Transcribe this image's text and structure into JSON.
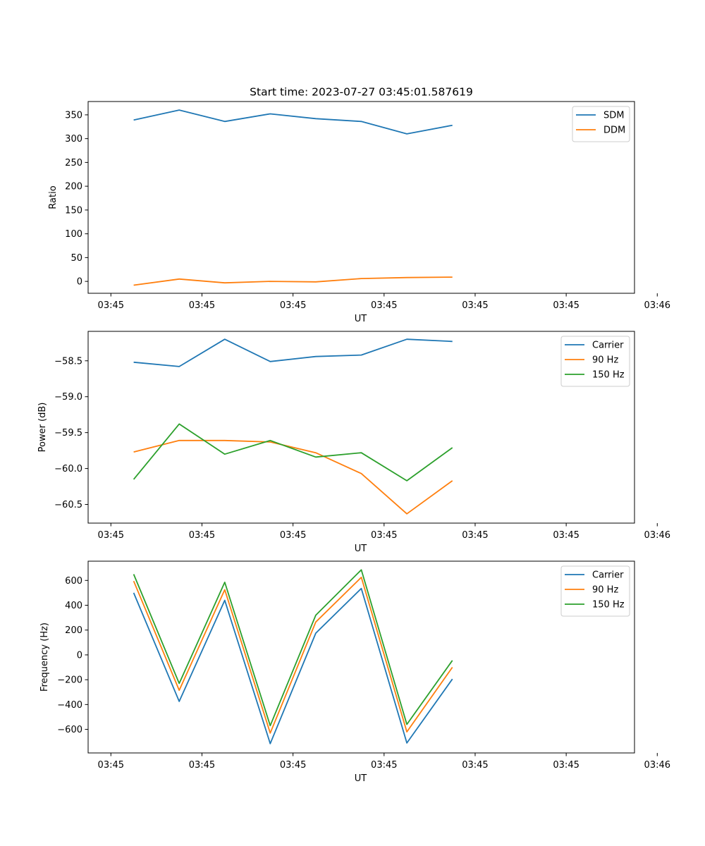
{
  "figure_title": "Start time: 2023-07-27 03:45:01.587619",
  "chart_data": [
    {
      "type": "line",
      "xlabel": "UT",
      "ylabel": "Ratio",
      "x_ticks": [
        "03:45",
        "03:45",
        "03:45",
        "03:45",
        "03:45",
        "03:45",
        "03:46"
      ],
      "xlim": [
        -0.5,
        11.5
      ],
      "ylim": [
        -25,
        378
      ],
      "y_ticks": [
        0,
        50,
        100,
        150,
        200,
        250,
        300,
        350
      ],
      "y_tick_labels": [
        "0",
        "50",
        "100",
        "150",
        "200",
        "250",
        "300",
        "350"
      ],
      "legend_position": "top-right",
      "series": [
        {
          "name": "SDM",
          "color": "#1f77b4",
          "x": [
            0.5,
            1.5,
            2.5,
            3.5,
            4.5,
            5.5,
            6.5,
            7.5
          ],
          "values": [
            339,
            360,
            336,
            352,
            342,
            336,
            310,
            328
          ]
        },
        {
          "name": "DDM",
          "color": "#ff7f0e",
          "x": [
            0.5,
            1.5,
            2.5,
            3.5,
            4.5,
            5.5,
            6.5,
            7.5
          ],
          "values": [
            -8,
            5,
            -3,
            0,
            -1,
            6,
            8,
            9
          ]
        }
      ]
    },
    {
      "type": "line",
      "xlabel": "UT",
      "ylabel": "Power (dB)",
      "x_ticks": [
        "03:45",
        "03:45",
        "03:45",
        "03:45",
        "03:45",
        "03:45",
        "03:46"
      ],
      "xlim": [
        -0.5,
        11.5
      ],
      "ylim": [
        -60.76,
        -58.09
      ],
      "y_ticks": [
        -58.5,
        -59.0,
        -59.5,
        -60.0,
        -60.5
      ],
      "y_tick_labels": [
        "−58.5",
        "−59.0",
        "−59.5",
        "−60.0",
        "−60.5"
      ],
      "legend_position": "top-right",
      "series": [
        {
          "name": "Carrier",
          "color": "#1f77b4",
          "x": [
            0.5,
            1.5,
            2.5,
            3.5,
            4.5,
            5.5,
            6.5,
            7.5
          ],
          "values": [
            -58.52,
            -58.58,
            -58.2,
            -58.51,
            -58.44,
            -58.42,
            -58.2,
            -58.23
          ]
        },
        {
          "name": "90 Hz",
          "color": "#ff7f0e",
          "x": [
            0.5,
            1.5,
            2.5,
            3.5,
            4.5,
            5.5,
            6.5,
            7.5
          ],
          "values": [
            -59.77,
            -59.61,
            -59.61,
            -59.63,
            -59.78,
            -60.07,
            -60.63,
            -60.17
          ]
        },
        {
          "name": "150 Hz",
          "color": "#2ca02c",
          "x": [
            0.5,
            1.5,
            2.5,
            3.5,
            4.5,
            5.5,
            6.5,
            7.5
          ],
          "values": [
            -60.15,
            -59.38,
            -59.8,
            -59.61,
            -59.84,
            -59.78,
            -60.17,
            -59.71
          ]
        }
      ]
    },
    {
      "type": "line",
      "xlabel": "UT",
      "ylabel": "Frequency (Hz)",
      "x_ticks": [
        "03:45",
        "03:45",
        "03:45",
        "03:45",
        "03:45",
        "03:45",
        "03:46"
      ],
      "xlim": [
        -0.5,
        11.5
      ],
      "ylim": [
        -790,
        755
      ],
      "y_ticks": [
        600,
        400,
        200,
        0,
        -200,
        -400,
        -600
      ],
      "y_tick_labels": [
        "600",
        "400",
        "200",
        "0",
        "−200",
        "−400",
        "−600"
      ],
      "legend_position": "top-right",
      "series": [
        {
          "name": "Carrier",
          "color": "#1f77b4",
          "x": [
            0.5,
            1.5,
            2.5,
            3.5,
            4.5,
            5.5,
            6.5,
            7.5
          ],
          "values": [
            500,
            -375,
            440,
            -715,
            175,
            535,
            -710,
            -195
          ]
        },
        {
          "name": "90 Hz",
          "color": "#ff7f0e",
          "x": [
            0.5,
            1.5,
            2.5,
            3.5,
            4.5,
            5.5,
            6.5,
            7.5
          ],
          "values": [
            595,
            -285,
            525,
            -630,
            265,
            625,
            -620,
            -100
          ]
        },
        {
          "name": "150 Hz",
          "color": "#2ca02c",
          "x": [
            0.5,
            1.5,
            2.5,
            3.5,
            4.5,
            5.5,
            6.5,
            7.5
          ],
          "values": [
            650,
            -230,
            585,
            -570,
            320,
            685,
            -560,
            -45
          ]
        }
      ]
    }
  ]
}
